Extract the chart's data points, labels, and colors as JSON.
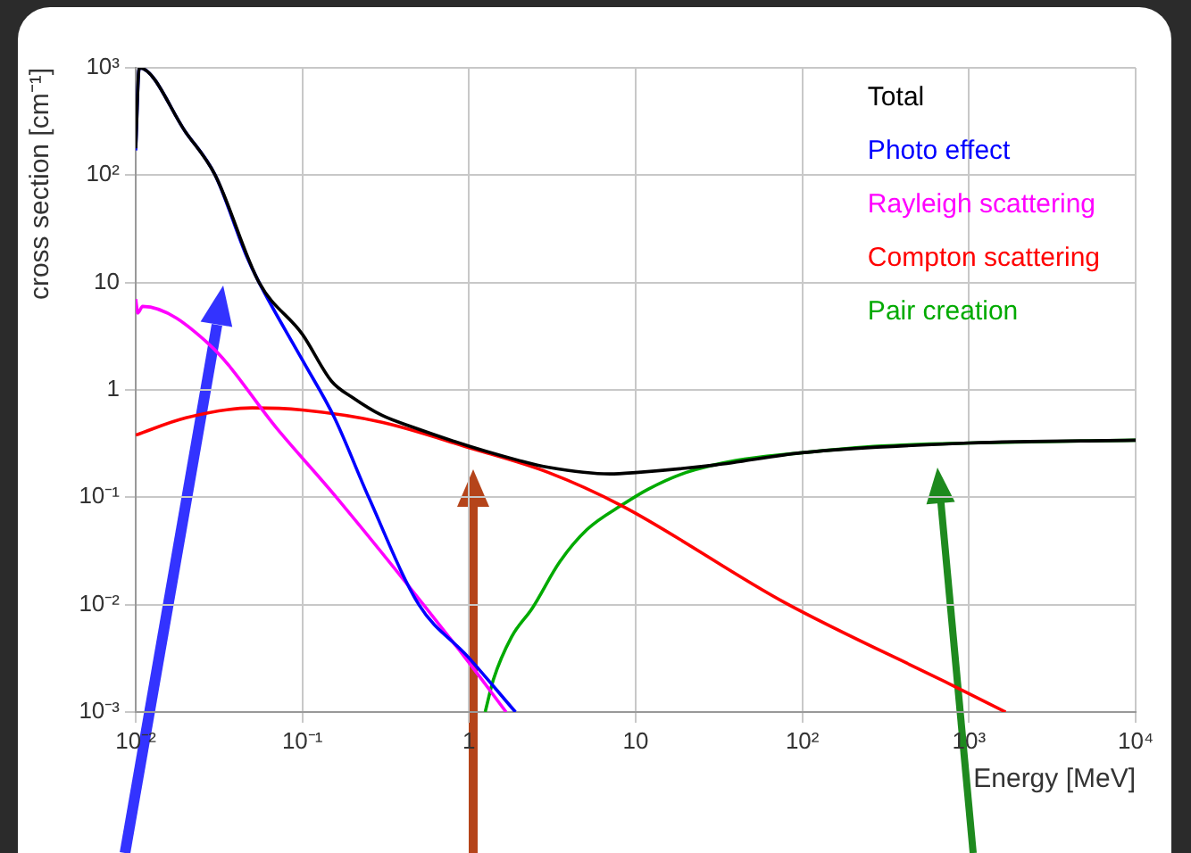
{
  "chart_data": {
    "type": "line",
    "xlabel": "Energy [MeV]",
    "ylabel": "cross section [cm⁻¹]",
    "log": "xy",
    "grid": true,
    "legend": "top right",
    "marker": "none",
    "line_style": "solid",
    "xlim": [
      0.01,
      10000
    ],
    "ylim": [
      0.001,
      1000
    ],
    "xticks": [
      {
        "value": 0.01,
        "label": "10⁻²"
      },
      {
        "value": 0.1,
        "label": "10⁻¹"
      },
      1,
      10,
      {
        "value": 100,
        "label": "10²"
      },
      {
        "value": 1000,
        "label": "10³"
      },
      {
        "value": 10000,
        "label": "10⁴"
      }
    ],
    "yticks": [
      {
        "value": 0.001,
        "label": "10⁻³"
      },
      {
        "value": 0.01,
        "label": "10⁻²"
      },
      {
        "value": 0.1,
        "label": "10⁻¹"
      },
      1,
      10,
      {
        "value": 100,
        "label": "10²"
      },
      {
        "value": 1000,
        "label": "10³"
      }
    ],
    "series": [
      {
        "name": "Total",
        "color": "#000000",
        "x": [
          0.01,
          0.0105,
          0.02,
          0.03,
          0.055,
          0.1,
          0.15,
          0.2,
          0.3,
          0.46,
          1,
          2,
          3,
          7,
          10,
          30,
          100,
          1000,
          10000
        ],
        "values": [
          178,
          1000,
          250,
          100,
          10,
          3.3,
          1.2,
          0.85,
          0.58,
          0.45,
          0.3,
          0.22,
          0.19,
          0.165,
          0.17,
          0.2,
          0.26,
          0.32,
          0.34
        ]
      },
      {
        "name": "Photo effect",
        "color": "#0000ff",
        "x": [
          0.01,
          0.0105,
          0.02,
          0.03,
          0.046,
          0.055,
          0.1,
          0.155,
          0.25,
          0.5,
          0.98,
          1.9
        ],
        "values": [
          170,
          1000,
          250,
          100,
          18,
          10,
          1.9,
          0.56,
          0.1,
          0.01,
          0.0033,
          0.001
        ]
      },
      {
        "name": "Rayleigh scattering",
        "color": "#ff00ff",
        "x": [
          0.01,
          0.0103,
          0.011,
          0.028,
          0.071,
          0.16,
          0.98,
          1.67
        ],
        "values": [
          7,
          5.2,
          6,
          2.6,
          0.43,
          0.1,
          0.003,
          0.001
        ]
      },
      {
        "name": "Compton scattering",
        "color": "#ff0000",
        "x": [
          0.01,
          0.02,
          0.05,
          0.1,
          0.3,
          1,
          3,
          8.3,
          78,
          780,
          1660
        ],
        "values": [
          0.38,
          0.55,
          0.68,
          0.65,
          0.5,
          0.29,
          0.17,
          0.083,
          0.0105,
          0.0018,
          0.001
        ]
      },
      {
        "name": "Pair creation",
        "color": "#00aa00",
        "x": [
          1.25,
          1.4,
          1.8,
          2.4,
          3.5,
          5.1,
          8.3,
          12,
          20,
          40,
          100,
          300,
          1000,
          10000
        ],
        "values": [
          0.001,
          0.002,
          0.005,
          0.0093,
          0.025,
          0.05,
          0.085,
          0.12,
          0.17,
          0.22,
          0.26,
          0.3,
          0.32,
          0.34
        ]
      }
    ]
  }
}
